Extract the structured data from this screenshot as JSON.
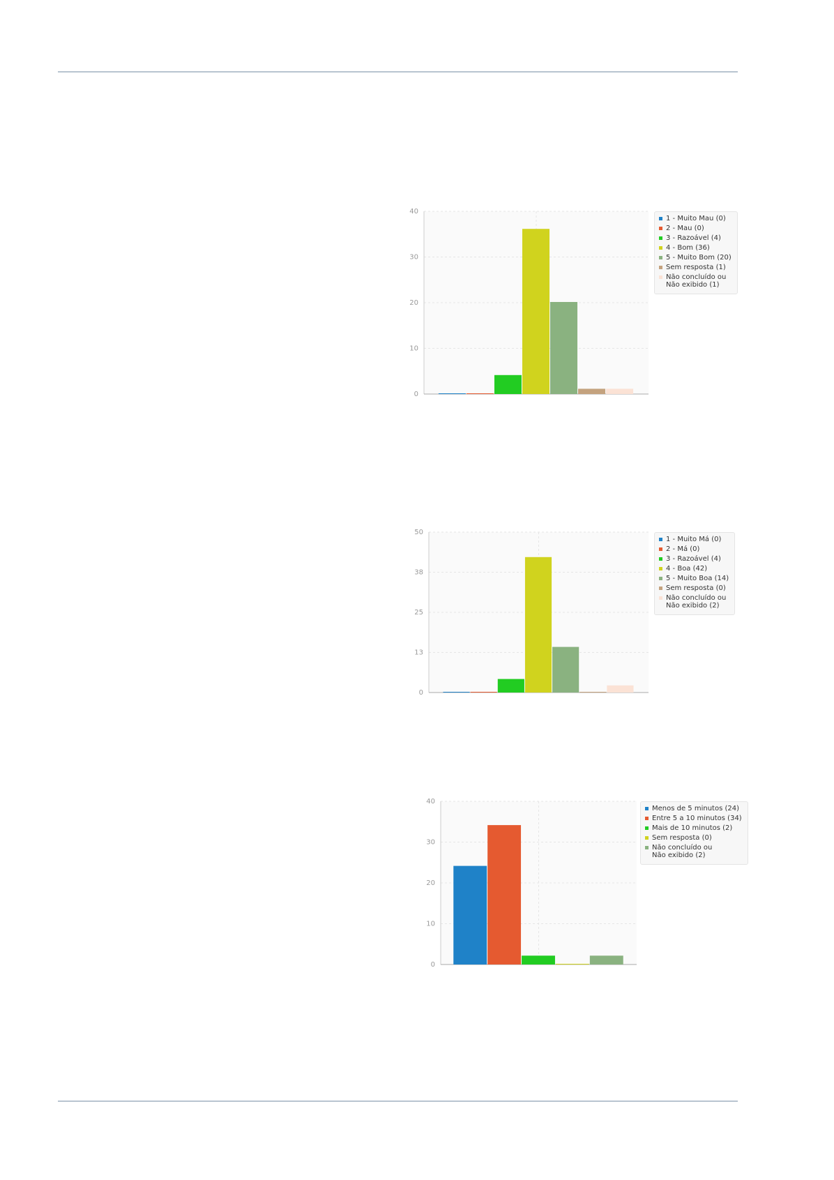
{
  "chart_data": [
    {
      "type": "bar",
      "categories": [
        "1 - Muito Mau (0)",
        "2 - Mau (0)",
        "3 - Razoável (4)",
        "4 - Bom (36)",
        "5 - Muito Bom (20)",
        "Sem resposta (1)",
        "Não concluído ou\nNão exibido (1)"
      ],
      "values": [
        0,
        0,
        4,
        36,
        20,
        1,
        1
      ],
      "colors": [
        "#1f82c8",
        "#e55a30",
        "#22cc22",
        "#d0d31e",
        "#8ab280",
        "#c4a27e",
        "#fbe2d5"
      ],
      "ylim": [
        0,
        40
      ],
      "yticks": [
        0,
        10,
        20,
        30,
        40
      ],
      "grid": true,
      "legend": "right"
    },
    {
      "type": "bar",
      "categories": [
        "1 - Muito Má (0)",
        "2 - Má (0)",
        "3 - Razoável (4)",
        "4 - Boa (42)",
        "5 - Muito Boa (14)",
        "Sem resposta (0)",
        "Não concluído ou\nNão exibido (2)"
      ],
      "values": [
        0,
        0,
        4,
        42,
        14,
        0,
        2
      ],
      "colors": [
        "#1f82c8",
        "#e55a30",
        "#22cc22",
        "#d0d31e",
        "#8ab280",
        "#c4a27e",
        "#fbe2d5"
      ],
      "ylim": [
        0,
        50
      ],
      "yticks": [
        0,
        {
          "value": 12.5,
          "label": "13"
        },
        25,
        {
          "value": 37.5,
          "label": "38"
        },
        50
      ],
      "grid": true,
      "legend": "right"
    },
    {
      "type": "bar",
      "categories": [
        "Menos de 5 minutos (24)",
        "Entre 5 a 10 minutos (34)",
        "Mais de 10 minutos (2)",
        "Sem resposta (0)",
        "Não concluído ou\nNão exibido (2)"
      ],
      "values": [
        24,
        34,
        2,
        0,
        2
      ],
      "colors": [
        "#1f82c8",
        "#e55a30",
        "#22cc22",
        "#d0d31e",
        "#8ab280"
      ],
      "ylim": [
        0,
        40
      ],
      "yticks": [
        0,
        10,
        20,
        30,
        40
      ],
      "grid": true,
      "legend": "right"
    }
  ]
}
